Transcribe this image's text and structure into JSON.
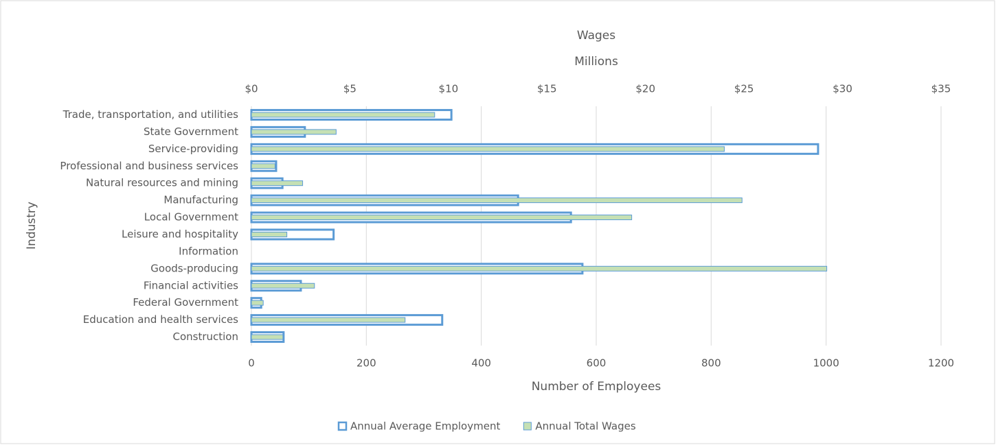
{
  "chart_data": {
    "type": "bar",
    "orientation": "horizontal",
    "title": "Wages",
    "subtitle": "Millions",
    "xlabel": "Number of Employees",
    "ylabel": "Industry",
    "categories": [
      "Trade, transportation, and utilities",
      "State Government",
      "Service-providing",
      "Professional and business services",
      "Natural resources and mining",
      "Manufacturing",
      "Local Government",
      "Leisure and hospitality",
      "Information",
      "Goods-producing",
      "Financial activities",
      "Federal Government",
      "Education and health services",
      "Construction"
    ],
    "series": [
      {
        "name": "Annual Average Employment",
        "color": "#5b9bd5",
        "fill": "#ffffff",
        "axis": "x",
        "values": [
          348,
          93,
          986,
          43,
          54,
          464,
          556,
          143,
          0,
          576,
          86,
          17,
          332,
          56
        ]
      },
      {
        "name": "Annual Total Wages",
        "color": "#5b9bd5",
        "fill": "#c5e0b4",
        "axis": "x2",
        "values": [
          9.3,
          4.3,
          24.0,
          1.2,
          2.6,
          24.9,
          19.3,
          1.8,
          0,
          29.2,
          3.2,
          0.6,
          7.8,
          1.6
        ]
      }
    ],
    "xlim": [
      0,
      1200
    ],
    "xticks": [
      0,
      200,
      400,
      600,
      800,
      1000,
      1200
    ],
    "x2lim": [
      0,
      35
    ],
    "x2ticks": [
      {
        "value": 0,
        "label": "$0"
      },
      {
        "value": 5,
        "label": "$5"
      },
      {
        "value": 10,
        "label": "$10"
      },
      {
        "value": 15,
        "label": "$15"
      },
      {
        "value": 20,
        "label": "$20"
      },
      {
        "value": 25,
        "label": "$25"
      },
      {
        "value": 30,
        "label": "$30"
      },
      {
        "value": 35,
        "label": "$35"
      }
    ],
    "grid": true,
    "legend": "bottom"
  }
}
